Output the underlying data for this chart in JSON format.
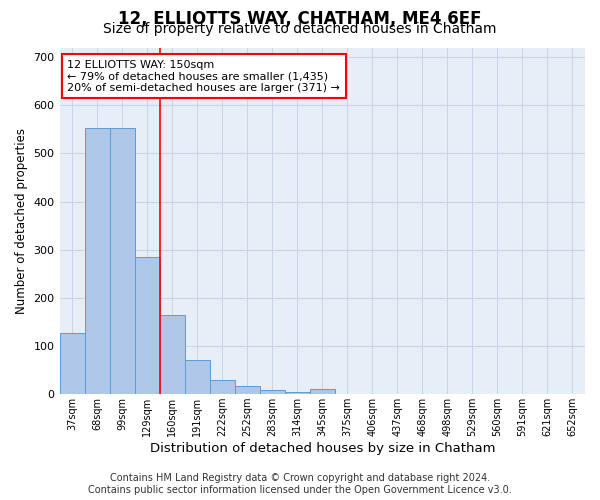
{
  "title": "12, ELLIOTTS WAY, CHATHAM, ME4 6EF",
  "subtitle": "Size of property relative to detached houses in Chatham",
  "xlabel": "Distribution of detached houses by size in Chatham",
  "ylabel": "Number of detached properties",
  "footer_line1": "Contains HM Land Registry data © Crown copyright and database right 2024.",
  "footer_line2": "Contains public sector information licensed under the Open Government Licence v3.0.",
  "categories": [
    "37sqm",
    "68sqm",
    "99sqm",
    "129sqm",
    "160sqm",
    "191sqm",
    "222sqm",
    "252sqm",
    "283sqm",
    "314sqm",
    "345sqm",
    "375sqm",
    "406sqm",
    "437sqm",
    "468sqm",
    "498sqm",
    "529sqm",
    "560sqm",
    "591sqm",
    "621sqm",
    "652sqm"
  ],
  "values": [
    128,
    553,
    553,
    284,
    164,
    71,
    29,
    17,
    9,
    4,
    10,
    0,
    0,
    0,
    0,
    0,
    0,
    0,
    0,
    0,
    0
  ],
  "bar_color": "#aec6e8",
  "bar_edge_color": "#5b9bd5",
  "grid_color": "#c8d4e8",
  "background_color": "#e8eef8",
  "annotation_text": "12 ELLIOTTS WAY: 150sqm\n← 79% of detached houses are smaller (1,435)\n20% of semi-detached houses are larger (371) →",
  "ylim": [
    0,
    720
  ],
  "yticks": [
    0,
    100,
    200,
    300,
    400,
    500,
    600,
    700
  ],
  "title_fontsize": 12,
  "subtitle_fontsize": 10,
  "annotation_fontsize": 8,
  "xlabel_fontsize": 9.5,
  "ylabel_fontsize": 8.5,
  "footer_fontsize": 7
}
